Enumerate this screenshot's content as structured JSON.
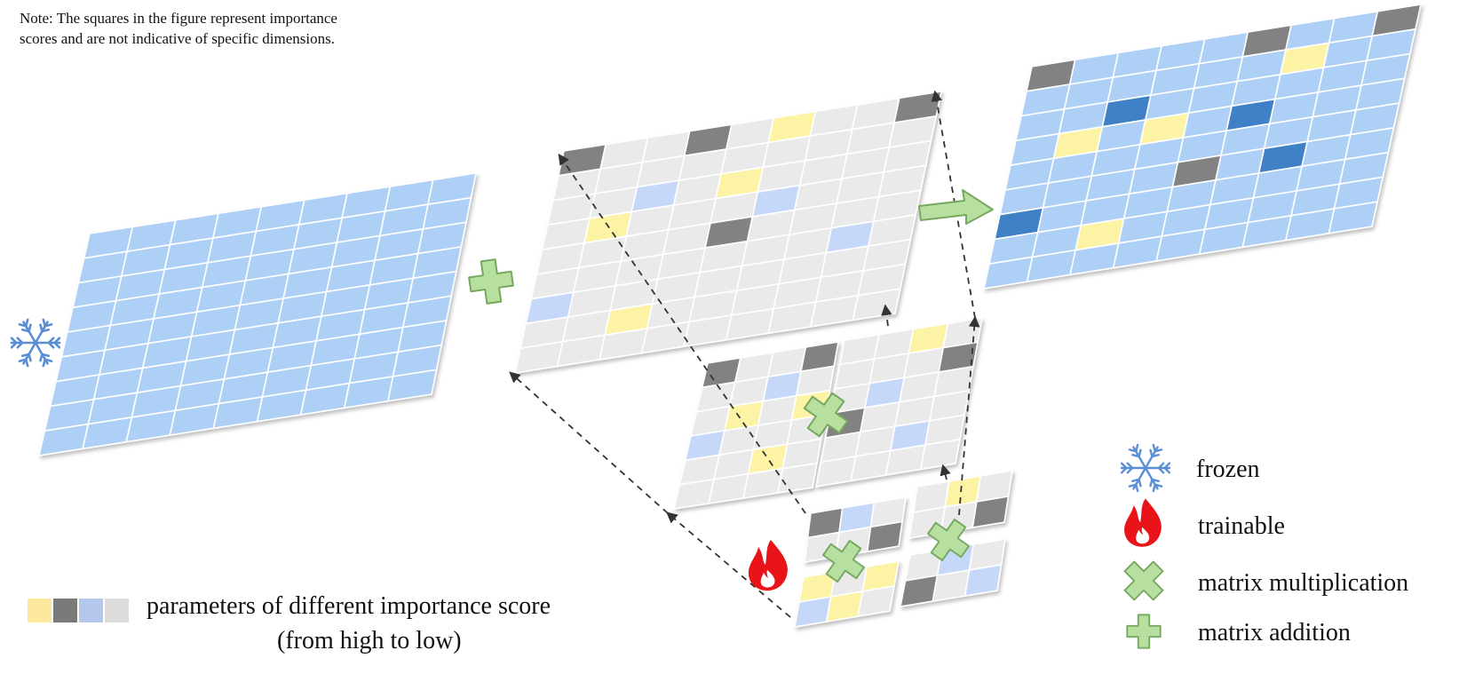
{
  "note": {
    "line1": "Note: The squares in the figure represent importance",
    "line2": "scores and are not indicative of specific dimensions."
  },
  "legend": {
    "frozen": "frozen",
    "trainable": "trainable",
    "multiplication": "matrix multiplication",
    "addition": "matrix addition"
  },
  "scale": {
    "line1": "parameters of different importance score",
    "line2": "(from high to low)",
    "colors": [
      "#fde8a0",
      "#7a7a7a",
      "#b4c8ec",
      "#dcdcdc"
    ]
  },
  "colors": {
    "frozen_cell": "#aed0f6",
    "neutral_cell": "#eaeaea",
    "high": "#fdf3a4",
    "dark": "#828282",
    "light_blue": "#c5d8fa",
    "result_highlight": "#3f80c6",
    "plus_fill": "#b7e0a0",
    "plus_stroke": "#76a860",
    "snowflake": "#5b8fd4",
    "flame": "#e8141a"
  },
  "icons": {
    "frozen": "snowflake-icon",
    "trainable": "flame-icon",
    "multiplication": "cross-icon",
    "addition": "plus-icon"
  }
}
